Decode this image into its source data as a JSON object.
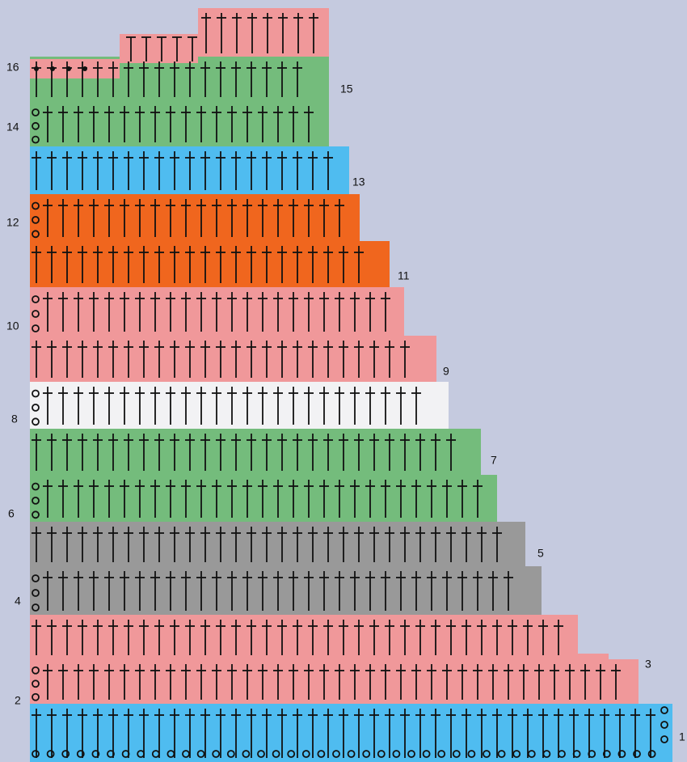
{
  "row_labels": [
    "1",
    "2",
    "3",
    "4",
    "5",
    "6",
    "7",
    "8",
    "9",
    "10",
    "11",
    "12",
    "13",
    "14",
    "15",
    "16"
  ]
}
